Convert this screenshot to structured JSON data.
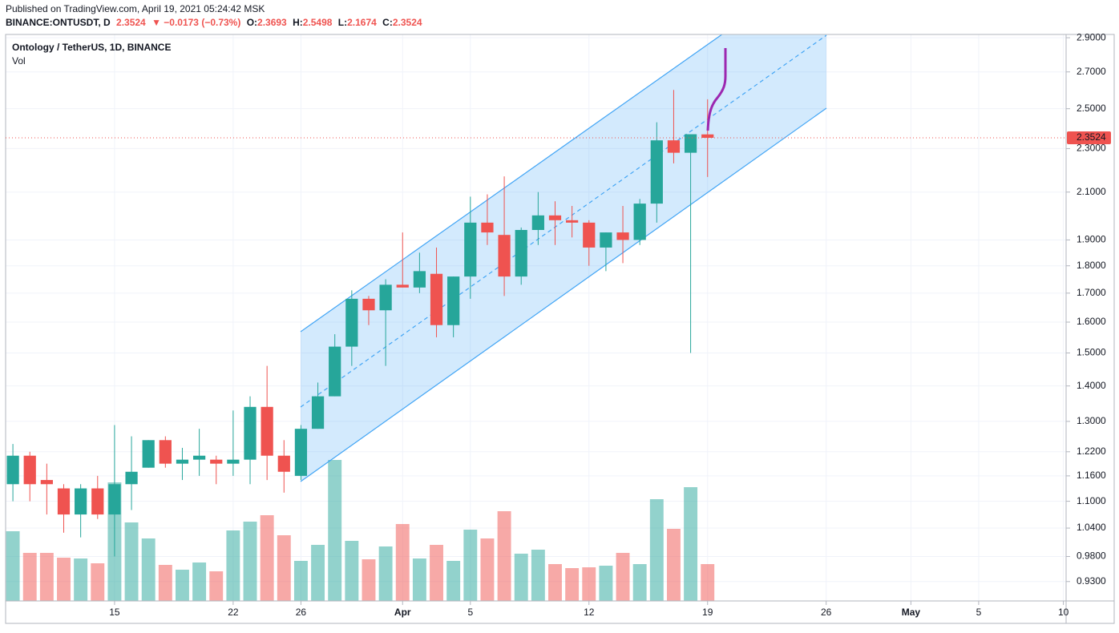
{
  "header": {
    "published": "Published on TradingView.com, April 19, 2021 05:24:42 MSK",
    "symbol": "BINANCE:ONTUSDT, D",
    "price": "2.3524",
    "change": "▼ −0.0173 (−0.73%)",
    "ohlc": [
      {
        "label": "O:",
        "value": "2.3693"
      },
      {
        "label": "H:",
        "value": "2.5498"
      },
      {
        "label": "L:",
        "value": "2.1674"
      },
      {
        "label": "C:",
        "value": "2.3524"
      }
    ]
  },
  "chart_data": {
    "type": "candlestick",
    "title": "Ontology / TetherUS, 1D, BINANCE",
    "volume_label": "Vol",
    "open": [
      1.14,
      1.21,
      1.15,
      1.13,
      1.07,
      1.13,
      1.07,
      1.14,
      1.18,
      1.25,
      1.19,
      1.2,
      1.2,
      1.19,
      1.2,
      1.34,
      1.21,
      1.16,
      1.28,
      1.37,
      1.52,
      1.68,
      1.64,
      1.73,
      1.72,
      1.77,
      1.59,
      1.76,
      1.97,
      1.92,
      1.76,
      1.94,
      2.0,
      1.98,
      1.97,
      1.87,
      1.93,
      1.9,
      2.05,
      2.34,
      2.28,
      2.3693
    ],
    "high": [
      1.24,
      1.22,
      1.19,
      1.14,
      1.14,
      1.16,
      1.29,
      1.26,
      1.25,
      1.26,
      1.23,
      1.28,
      1.21,
      1.33,
      1.37,
      1.46,
      1.25,
      1.29,
      1.41,
      1.56,
      1.71,
      1.69,
      1.75,
      1.93,
      1.85,
      1.87,
      1.76,
      2.08,
      2.09,
      2.17,
      1.95,
      2.1,
      2.06,
      2.04,
      1.98,
      1.93,
      2.04,
      2.07,
      2.43,
      2.6,
      2.37,
      2.5498
    ],
    "low": [
      1.1,
      1.1,
      1.07,
      1.03,
      1.02,
      1.06,
      0.98,
      1.08,
      1.18,
      1.18,
      1.15,
      1.16,
      1.14,
      1.16,
      1.14,
      1.15,
      1.12,
      1.15,
      1.28,
      1.37,
      1.46,
      1.59,
      1.46,
      1.72,
      1.7,
      1.55,
      1.55,
      1.68,
      1.88,
      1.69,
      1.73,
      1.88,
      1.88,
      1.91,
      1.8,
      1.78,
      1.81,
      1.88,
      1.97,
      2.23,
      1.5,
      2.1674
    ],
    "close": [
      1.21,
      1.14,
      1.14,
      1.07,
      1.13,
      1.07,
      1.14,
      1.17,
      1.25,
      1.19,
      1.2,
      1.21,
      1.19,
      1.2,
      1.34,
      1.21,
      1.17,
      1.28,
      1.37,
      1.52,
      1.68,
      1.64,
      1.73,
      1.72,
      1.78,
      1.59,
      1.76,
      1.97,
      1.93,
      1.76,
      1.94,
      2.0,
      1.98,
      1.97,
      1.87,
      1.93,
      1.9,
      2.05,
      2.34,
      2.28,
      2.37,
      2.3524
    ],
    "volume": [
      87,
      60,
      60,
      54,
      53,
      47,
      148,
      98,
      78,
      45,
      39,
      48,
      37,
      88,
      99,
      107,
      82,
      50,
      70,
      176,
      75,
      52,
      68,
      96,
      53,
      70,
      50,
      89,
      78,
      112,
      59,
      64,
      46,
      41,
      42,
      44,
      60,
      46,
      127,
      90,
      142,
      46
    ],
    "volume_lim": [
      0,
      707
    ],
    "up_color": "#26a69a",
    "down_color": "#ef5350",
    "log": true,
    "grid": true,
    "ylim": [
      0.893,
      2.92
    ],
    "yticks": [
      {
        "value": 2.9,
        "label": "2.9000"
      },
      {
        "value": 2.7,
        "label": "2.7000"
      },
      {
        "value": 2.5,
        "label": "2.5000"
      },
      {
        "value": 2.3,
        "label": "2.3000"
      },
      {
        "value": 2.1,
        "label": "2.1000"
      },
      {
        "value": 1.9,
        "label": "1.9000"
      },
      {
        "value": 1.8,
        "label": "1.8000"
      },
      {
        "value": 1.7,
        "label": "1.7000"
      },
      {
        "value": 1.6,
        "label": "1.6000"
      },
      {
        "value": 1.5,
        "label": "1.5000"
      },
      {
        "value": 1.4,
        "label": "1.4000"
      },
      {
        "value": 1.3,
        "label": "1.3000"
      },
      {
        "value": 1.22,
        "label": "1.2200"
      },
      {
        "value": 1.16,
        "label": "1.1600"
      },
      {
        "value": 1.1,
        "label": "1.1000"
      },
      {
        "value": 1.04,
        "label": "1.0400"
      },
      {
        "value": 0.98,
        "label": "0.9800"
      },
      {
        "value": 0.93,
        "label": "0.9300"
      }
    ],
    "xlim": [
      -0.43,
      62.16
    ],
    "xticks": [
      {
        "value": 6,
        "label": "15"
      },
      {
        "value": 13,
        "label": "22"
      },
      {
        "value": 17,
        "label": "26"
      },
      {
        "value": 23,
        "label": "Apr"
      },
      {
        "value": 27,
        "label": "5"
      },
      {
        "value": 34,
        "label": "12"
      },
      {
        "value": 41,
        "label": "19"
      },
      {
        "value": 48,
        "label": "26"
      },
      {
        "value": 53,
        "label": "May"
      },
      {
        "value": 57,
        "label": "5"
      },
      {
        "value": 62,
        "label": "10"
      }
    ],
    "last_price": 2.3524
  }
}
